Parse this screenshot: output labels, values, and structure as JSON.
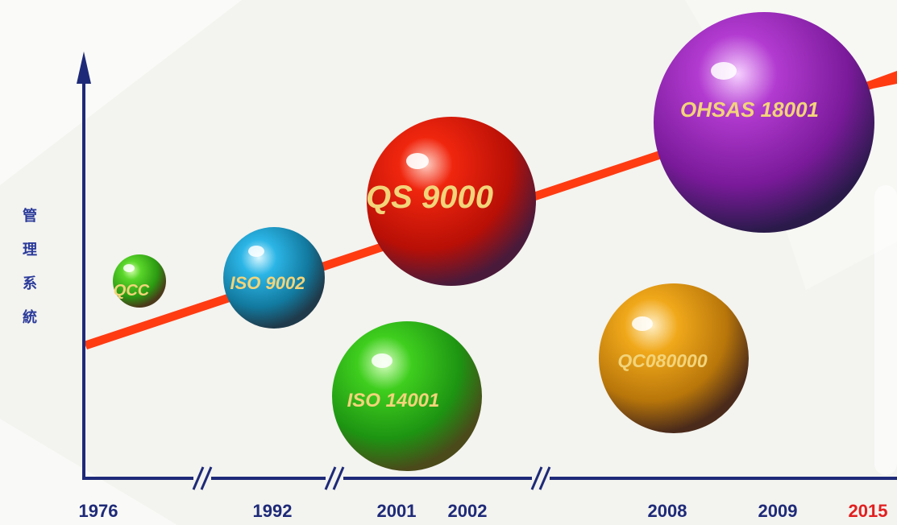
{
  "y_label": "管理系統",
  "colors": {
    "axis": "#1e2a78",
    "trend": "#ff3b12",
    "year_label": "#1e2a78",
    "year_highlight": "#e21f1f",
    "bubble_text": "#f2d47a"
  },
  "axis_breaks": 3,
  "years": [
    {
      "label": "1976",
      "highlight": false
    },
    {
      "label": "1992",
      "highlight": false
    },
    {
      "label": "2001",
      "highlight": false
    },
    {
      "label": "2002",
      "highlight": false
    },
    {
      "label": "2008",
      "highlight": false
    },
    {
      "label": "2009",
      "highlight": false
    },
    {
      "label": "2015",
      "highlight": true
    }
  ],
  "bubbles": [
    {
      "label": "QCC",
      "color": "#3bb820"
    },
    {
      "label": "ISO 9002",
      "color": "#1aa3d6"
    },
    {
      "label": "QS 9000",
      "color": "#e01a0a"
    },
    {
      "label": "ISO 14001",
      "color": "#2fbf1a"
    },
    {
      "label": "QC080000",
      "color": "#e39a12"
    },
    {
      "label": "OHSAS 18001",
      "color": "#9a26b8"
    }
  ]
}
